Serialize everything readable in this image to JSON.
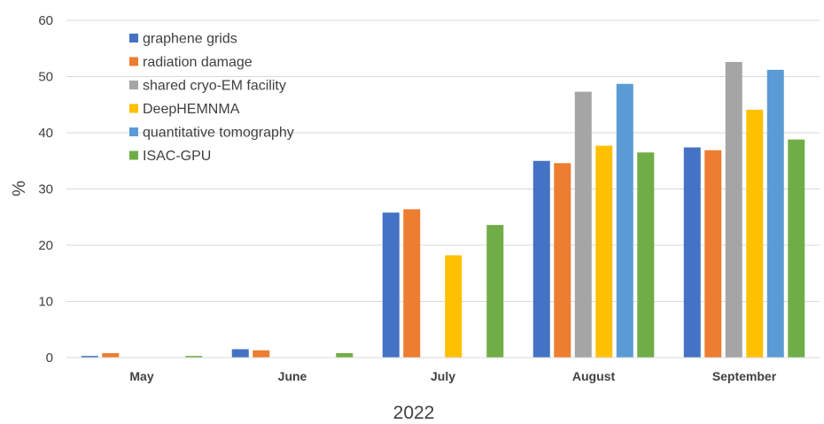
{
  "chart_data": {
    "type": "bar",
    "categories": [
      "May",
      "June",
      "July",
      "August",
      "September"
    ],
    "series": [
      {
        "name": "graphene grids",
        "color": "#4472C4",
        "values": [
          0.3,
          1.5,
          25.8,
          35.0,
          37.4
        ]
      },
      {
        "name": "radiation damage",
        "color": "#ED7D31",
        "values": [
          0.8,
          1.3,
          26.4,
          34.6,
          36.9
        ]
      },
      {
        "name": "shared cryo-EM facility",
        "color": "#A5A5A5",
        "values": [
          0,
          0,
          0,
          47.3,
          52.6
        ]
      },
      {
        "name": "DeepHEMNMA",
        "color": "#FFC000",
        "values": [
          0,
          0,
          18.2,
          37.7,
          44.1
        ]
      },
      {
        "name": "quantitative tomography",
        "color": "#5B9BD5",
        "values": [
          0,
          0,
          0,
          48.7,
          51.2
        ]
      },
      {
        "name": "ISAC-GPU",
        "color": "#70AD47",
        "values": [
          0.3,
          0.8,
          23.6,
          36.5,
          38.8
        ]
      }
    ],
    "xlabel": "2022",
    "ylabel": "%",
    "ylim": [
      0,
      60
    ],
    "yticks": [
      "0",
      "10",
      "20",
      "30",
      "40",
      "50",
      "60"
    ],
    "grid": true,
    "legend_position": "top-left"
  }
}
